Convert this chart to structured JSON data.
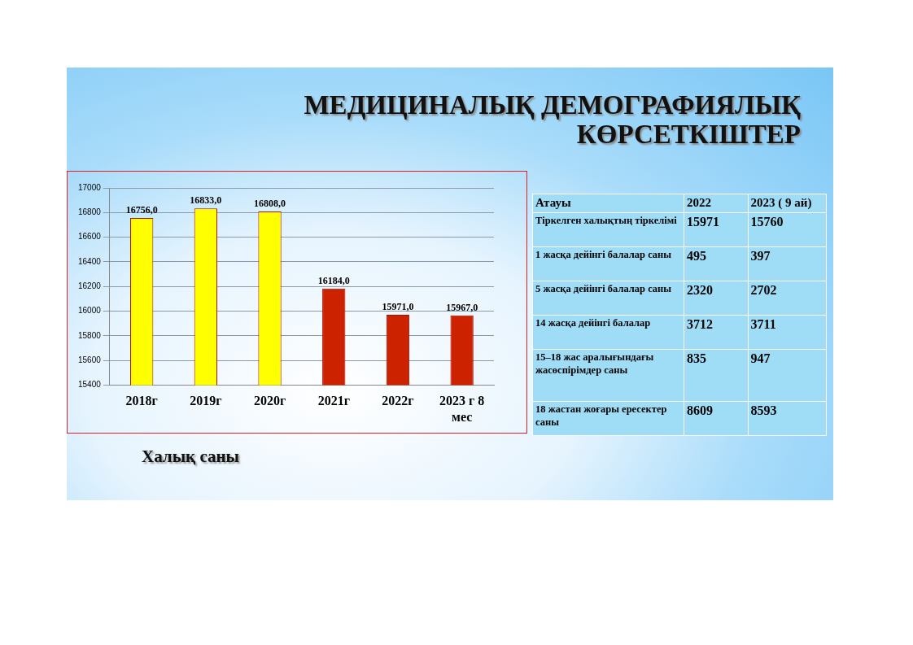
{
  "chart_data": [
    {
      "type": "bar",
      "title": "МЕДИЦИНАЛЫҚ ДЕМОГРАФИЯЛЫҚ КӨРСЕТКІШТЕР",
      "categories": [
        "2018г",
        "2019г",
        "2020г",
        "2021г",
        "2022г",
        "2023 г 8 мес"
      ],
      "values": [
        16756,
        16833,
        16808,
        16184,
        15971,
        15967
      ],
      "value_labels": [
        "16756,0",
        "16833,0",
        "16808,0",
        "16184,0",
        "15971,0",
        "15967,0"
      ],
      "colors": [
        "#ffff00",
        "#ffff00",
        "#ffff00",
        "#cc2200",
        "#cc2200",
        "#cc2200"
      ],
      "ylim": [
        15400,
        17000
      ],
      "yticks": [
        15400,
        15600,
        15800,
        16000,
        16200,
        16400,
        16600,
        16800,
        17000
      ],
      "grid": "y",
      "annotations": [
        "Халық саны"
      ]
    },
    {
      "type": "other",
      "annotations": [
        "Атауы",
        "2022",
        "2023 ( 9 ай)",
        "Тіркелген халықтың тіркелімі",
        "15971",
        "15760",
        "1 жасқа дейінгі балалар саны",
        "495",
        "397",
        "5 жасқа дейінгі балалар саны",
        "2320",
        "2702",
        "14 жасқа дейінгі балалар",
        "3712",
        "3711",
        "15–18 жас аралығындағы жасөспірімдер саны",
        "835",
        "947",
        "18 жастан жоғары ересектер саны",
        "8609",
        "8593"
      ]
    }
  ]
}
